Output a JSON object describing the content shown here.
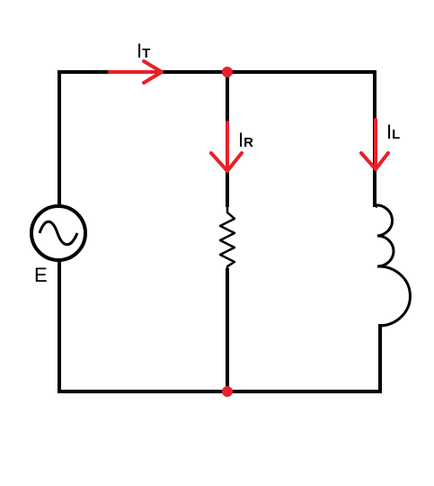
{
  "labels": {
    "source": "E",
    "total_current_main": "I",
    "total_current_sub": "T",
    "resistor_current_main": "I",
    "resistor_current_sub": "R",
    "inductor_current_main": "I",
    "inductor_current_sub": "L"
  },
  "colors": {
    "wire": "#000000",
    "arrow": "#e8202a",
    "node": "#e8202a",
    "background": "#ffffff"
  }
}
